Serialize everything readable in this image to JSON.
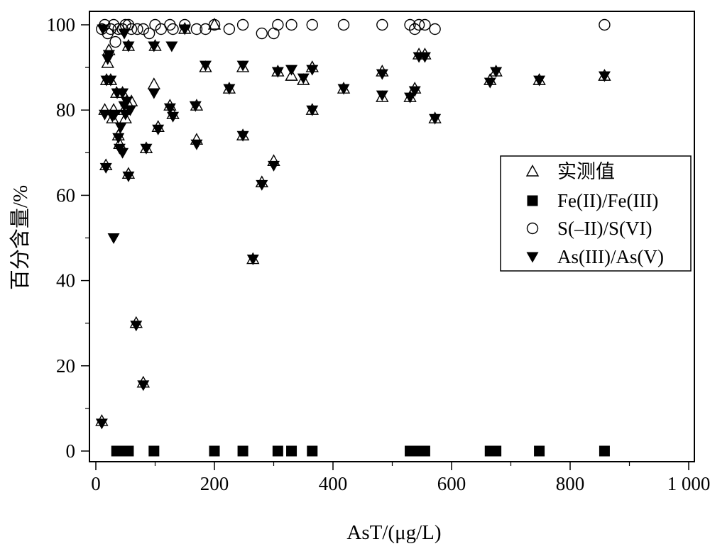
{
  "chart_data": {
    "type": "scatter",
    "xlabel": "AsT/(μg/L)",
    "ylabel": "百分含量/%",
    "xlim": [
      0,
      1000
    ],
    "ylim": [
      0,
      100
    ],
    "x_ticks": [
      0,
      200,
      400,
      600,
      800,
      1000
    ],
    "x_tick_labels": [
      "0",
      "200",
      "400",
      "600",
      "800",
      "1 000"
    ],
    "y_ticks": [
      0,
      20,
      40,
      60,
      80,
      100
    ],
    "y_tick_labels": [
      "0",
      "20",
      "40",
      "60",
      "80",
      "100"
    ],
    "grid": false,
    "legend_position": "right",
    "series": [
      {
        "name": "实测值",
        "marker": "triangle-up-open",
        "color": "#000000",
        "points": [
          [
            10,
            7
          ],
          [
            15,
            80
          ],
          [
            17,
            67
          ],
          [
            18,
            87
          ],
          [
            20,
            91
          ],
          [
            22,
            94
          ],
          [
            25,
            87
          ],
          [
            28,
            78
          ],
          [
            30,
            80
          ],
          [
            35,
            84
          ],
          [
            38,
            74
          ],
          [
            40,
            72
          ],
          [
            45,
            84
          ],
          [
            48,
            80
          ],
          [
            50,
            78
          ],
          [
            52,
            82
          ],
          [
            55,
            95
          ],
          [
            55,
            65
          ],
          [
            60,
            82
          ],
          [
            68,
            30
          ],
          [
            80,
            16
          ],
          [
            85,
            71
          ],
          [
            100,
            95
          ],
          [
            98,
            86
          ],
          [
            105,
            76
          ],
          [
            125,
            81
          ],
          [
            130,
            79
          ],
          [
            150,
            99
          ],
          [
            170,
            81
          ],
          [
            170,
            73
          ],
          [
            185,
            90
          ],
          [
            200,
            100
          ],
          [
            225,
            85
          ],
          [
            248,
            74
          ],
          [
            248,
            90
          ],
          [
            265,
            45
          ],
          [
            280,
            63
          ],
          [
            300,
            68
          ],
          [
            307,
            89
          ],
          [
            330,
            88
          ],
          [
            350,
            87
          ],
          [
            365,
            90
          ],
          [
            365,
            80
          ],
          [
            418,
            85
          ],
          [
            483,
            89
          ],
          [
            483,
            83
          ],
          [
            530,
            83
          ],
          [
            538,
            85
          ],
          [
            545,
            93
          ],
          [
            555,
            93
          ],
          [
            572,
            78
          ],
          [
            665,
            87
          ],
          [
            675,
            89
          ],
          [
            748,
            87
          ],
          [
            858,
            88
          ]
        ]
      },
      {
        "name": "Fe(II)/Fe(III)",
        "marker": "square",
        "color": "#000000",
        "points": [
          [
            35,
            0
          ],
          [
            42,
            0
          ],
          [
            48,
            0
          ],
          [
            55,
            0
          ],
          [
            98,
            0
          ],
          [
            200,
            0
          ],
          [
            248,
            0
          ],
          [
            307,
            0
          ],
          [
            330,
            0
          ],
          [
            365,
            0
          ],
          [
            530,
            0
          ],
          [
            538,
            0
          ],
          [
            545,
            0
          ],
          [
            555,
            0
          ],
          [
            665,
            0
          ],
          [
            675,
            0
          ],
          [
            748,
            0
          ],
          [
            858,
            0
          ]
        ]
      },
      {
        "name": "S(–II)/S(VI)",
        "marker": "circle-open",
        "color": "#000000",
        "points": [
          [
            10,
            99
          ],
          [
            15,
            100
          ],
          [
            20,
            98
          ],
          [
            25,
            99
          ],
          [
            30,
            100
          ],
          [
            33,
            96
          ],
          [
            38,
            99
          ],
          [
            45,
            99
          ],
          [
            50,
            100
          ],
          [
            55,
            100
          ],
          [
            60,
            99
          ],
          [
            70,
            99
          ],
          [
            80,
            99
          ],
          [
            90,
            98
          ],
          [
            100,
            100
          ],
          [
            110,
            99
          ],
          [
            125,
            100
          ],
          [
            130,
            99
          ],
          [
            150,
            100
          ],
          [
            170,
            99
          ],
          [
            185,
            99
          ],
          [
            200,
            100
          ],
          [
            225,
            99
          ],
          [
            248,
            100
          ],
          [
            280,
            98
          ],
          [
            300,
            98
          ],
          [
            307,
            100
          ],
          [
            330,
            100
          ],
          [
            365,
            100
          ],
          [
            418,
            100
          ],
          [
            483,
            100
          ],
          [
            530,
            100
          ],
          [
            538,
            99
          ],
          [
            545,
            100
          ],
          [
            555,
            100
          ],
          [
            572,
            99
          ],
          [
            858,
            100
          ]
        ]
      },
      {
        "name": "As(III)/As(V)",
        "marker": "triangle-down",
        "color": "#000000",
        "points": [
          [
            10,
            6.5
          ],
          [
            12,
            99
          ],
          [
            15,
            79
          ],
          [
            17,
            66.5
          ],
          [
            18,
            87
          ],
          [
            20,
            92
          ],
          [
            22,
            93
          ],
          [
            25,
            87
          ],
          [
            28,
            78.5
          ],
          [
            30,
            50
          ],
          [
            32,
            79
          ],
          [
            36,
            84
          ],
          [
            38,
            73.5
          ],
          [
            40,
            71
          ],
          [
            42,
            76
          ],
          [
            45,
            84
          ],
          [
            45,
            70
          ],
          [
            48,
            98
          ],
          [
            48,
            81
          ],
          [
            50,
            79
          ],
          [
            52,
            82
          ],
          [
            55,
            95
          ],
          [
            55,
            64.5
          ],
          [
            58,
            80
          ],
          [
            68,
            29.5
          ],
          [
            80,
            15.5
          ],
          [
            85,
            71
          ],
          [
            98,
            95
          ],
          [
            98,
            84
          ],
          [
            105,
            75.5
          ],
          [
            125,
            80.5
          ],
          [
            128,
            95
          ],
          [
            130,
            78.5
          ],
          [
            150,
            99
          ],
          [
            168,
            81
          ],
          [
            170,
            72
          ],
          [
            185,
            90.5
          ],
          [
            225,
            85
          ],
          [
            248,
            74
          ],
          [
            248,
            90.5
          ],
          [
            265,
            45
          ],
          [
            280,
            62.5
          ],
          [
            300,
            67
          ],
          [
            307,
            89
          ],
          [
            330,
            89.5
          ],
          [
            350,
            87.5
          ],
          [
            365,
            89.5
          ],
          [
            365,
            80
          ],
          [
            418,
            85
          ],
          [
            483,
            88.5
          ],
          [
            483,
            83.5
          ],
          [
            530,
            83
          ],
          [
            538,
            84.5
          ],
          [
            545,
            92.5
          ],
          [
            555,
            92.5
          ],
          [
            572,
            78
          ],
          [
            665,
            86.5
          ],
          [
            675,
            89
          ],
          [
            748,
            87
          ],
          [
            858,
            88
          ]
        ]
      }
    ]
  }
}
